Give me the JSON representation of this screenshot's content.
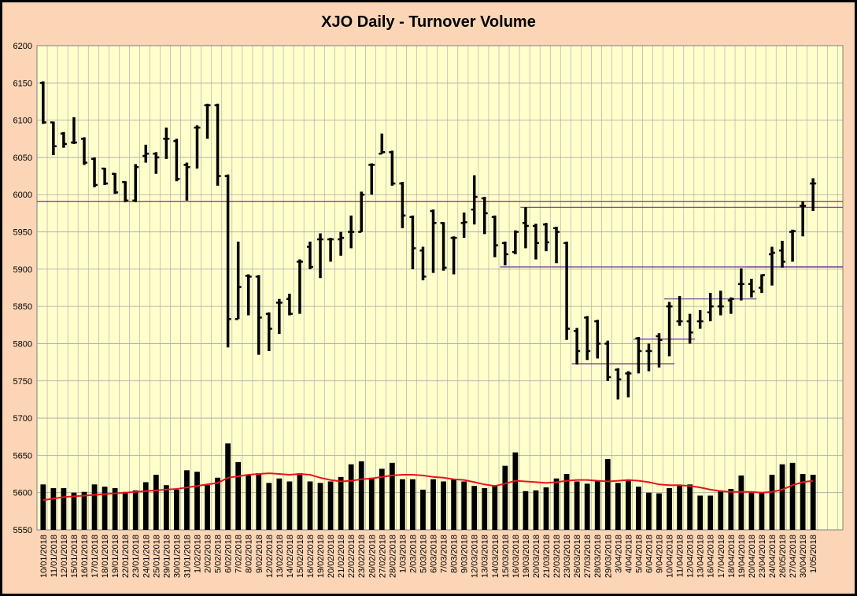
{
  "chart_data": {
    "type": "ohlc",
    "title": "XJO Daily - Turnover Volume",
    "ylim": [
      5550,
      6200
    ],
    "yticks": [
      5550,
      5600,
      5650,
      5700,
      5750,
      5800,
      5850,
      5900,
      5950,
      6000,
      6050,
      6100,
      6150,
      6200
    ],
    "grid": true,
    "categories": [
      "10/01/2018",
      "11/01/2018",
      "12/01/2018",
      "15/01/2018",
      "16/01/2018",
      "17/01/2018",
      "18/01/2018",
      "19/01/2018",
      "22/01/2018",
      "23/01/2018",
      "24/01/2018",
      "25/01/2018",
      "29/01/2018",
      "30/01/2018",
      "31/01/2018",
      "1/02/2018",
      "2/02/2018",
      "5/02/2018",
      "6/02/2018",
      "7/02/2018",
      "8/02/2018",
      "9/02/2018",
      "12/02/2018",
      "13/02/2018",
      "14/02/2018",
      "15/02/2018",
      "16/02/2018",
      "19/02/2018",
      "20/02/2018",
      "21/02/2018",
      "22/02/2018",
      "23/02/2018",
      "26/02/2018",
      "27/02/2018",
      "28/02/2018",
      "1/03/2018",
      "2/03/2018",
      "5/03/2018",
      "6/03/2018",
      "7/03/2018",
      "8/03/2018",
      "9/03/2018",
      "12/03/2018",
      "13/03/2018",
      "14/03/2018",
      "15/03/2018",
      "16/03/2018",
      "19/03/2018",
      "20/03/2018",
      "21/03/2018",
      "22/03/2018",
      "23/03/2018",
      "26/03/2018",
      "27/03/2018",
      "28/03/2018",
      "29/03/2018",
      "3/04/2018",
      "4/04/2018",
      "5/04/2018",
      "6/04/2018",
      "9/04/2018",
      "10/04/2018",
      "11/04/2018",
      "12/04/2018",
      "13/04/2018",
      "16/04/2018",
      "17/04/2018",
      "18/04/2018",
      "19/04/2018",
      "20/04/2018",
      "23/04/2018",
      "24/04/2018",
      "26/05/2018",
      "27/04/2018",
      "30/04/2018",
      "1/05/2018"
    ],
    "labeled_categories": [
      "10/01/2018",
      "11/01/2018",
      "12/01/2018",
      "15/01/2018",
      "16/01/2018",
      "17/01/2018",
      "18/01/2018",
      "19/01/2018",
      "22/01/2018",
      "23/01/2018",
      "24/01/2018",
      "25/01/2018",
      "29/01/2018",
      "30/01/2018",
      "31/01/2018",
      "1/02/2018",
      "2/02/2018",
      "5/02/2018",
      "6/02/2018",
      "7/02/2018",
      "8/02/2018",
      "9/02/2018",
      "12/02/2018",
      "13/02/2018",
      "14/02/2018",
      "15/02/2018",
      "16/02/2018",
      "19/02/2018",
      "20/02/2018",
      "21/02/2018",
      "22/02/2018",
      "23/02/2018",
      "26/02/2018",
      "27/02/2018",
      "28/02/2018",
      "1/03/2018",
      "2/03/2018",
      "5/03/2018",
      "6/03/2018",
      "7/03/2018",
      "8/03/2018",
      "9/03/2018",
      "12/03/2018",
      "13/03/2018",
      "14/03/2018",
      "15/03/2018",
      "16/03/2018",
      "19/03/2018",
      "20/03/2018",
      "21/03/2018",
      "22/03/2018",
      "23/03/2018",
      "26/03/2018",
      "27/03/2018",
      "28/03/2018",
      "29/03/2018",
      "3/04/2018",
      "4/04/2018",
      "5/04/2018",
      "6/04/2018",
      "9/04/2018",
      "10/04/2018",
      "11/04/2018",
      "12/04/2018",
      "13/04/2018",
      "16/04/2018",
      "17/04/2018",
      "18/04/2018",
      "19/04/2018",
      "20/04/2018",
      "23/04/2018",
      "24/04/2018",
      "26/05/2018",
      "27/04/2018",
      "30/04/2018",
      "1/05/2018"
    ],
    "ohlc": [
      [
        6150,
        6152,
        6095,
        6097
      ],
      [
        6097,
        6098,
        6053,
        6065
      ],
      [
        6082,
        6084,
        6063,
        6068
      ],
      [
        6070,
        6104,
        6068,
        6070
      ],
      [
        6075,
        6077,
        6040,
        6043
      ],
      [
        6048,
        6050,
        6010,
        6013
      ],
      [
        6035,
        6036,
        6013,
        6015
      ],
      [
        6028,
        6029,
        6001,
        6003
      ],
      [
        6017,
        6018,
        5990,
        5992
      ],
      [
        5992,
        6041,
        5990,
        6037
      ],
      [
        6052,
        6067,
        6043,
        6055
      ],
      [
        6055,
        6057,
        6028,
        6050
      ],
      [
        6075,
        6090,
        6048,
        6075
      ],
      [
        6072,
        6075,
        6018,
        6021
      ],
      [
        6040,
        6043,
        5992,
        6037
      ],
      [
        6090,
        6093,
        6035,
        6090
      ],
      [
        6120,
        6122,
        6075,
        6120
      ],
      [
        6120,
        6122,
        6012,
        6025
      ],
      [
        6025,
        6027,
        5795,
        5833
      ],
      [
        5833,
        5937,
        5833,
        5876
      ],
      [
        5891,
        5893,
        5838,
        5890
      ],
      [
        5890,
        5892,
        5785,
        5835
      ],
      [
        5840,
        5842,
        5790,
        5820
      ],
      [
        5855,
        5860,
        5813,
        5855
      ],
      [
        5860,
        5867,
        5838,
        5840
      ],
      [
        5910,
        5913,
        5840,
        5910
      ],
      [
        5930,
        5937,
        5900,
        5903
      ],
      [
        5940,
        5948,
        5888,
        5940
      ],
      [
        5940,
        5942,
        5910,
        5940
      ],
      [
        5940,
        5950,
        5918,
        5942
      ],
      [
        5950,
        5972,
        5928,
        5950
      ],
      [
        5950,
        6004,
        5950,
        6000
      ],
      [
        6040,
        6042,
        6000,
        6040
      ],
      [
        6055,
        6082,
        6055,
        6057
      ],
      [
        6057,
        6059,
        6012,
        6015
      ],
      [
        6015,
        6017,
        5955,
        5972
      ],
      [
        5970,
        5972,
        5900,
        5928
      ],
      [
        5925,
        5930,
        5885,
        5890
      ],
      [
        5978,
        5980,
        5895,
        5962
      ],
      [
        5962,
        5963,
        5898,
        5902
      ],
      [
        5942,
        5944,
        5893,
        5942
      ],
      [
        5962,
        5976,
        5942,
        5963
      ],
      [
        5980,
        6026,
        5960,
        5997
      ],
      [
        5995,
        5997,
        5947,
        5975
      ],
      [
        5970,
        5972,
        5916,
        5932
      ],
      [
        5935,
        5937,
        5905,
        5920
      ],
      [
        5923,
        5952,
        5920,
        5950
      ],
      [
        5962,
        5983,
        5928,
        5958
      ],
      [
        5958,
        5961,
        5913,
        5935
      ],
      [
        5960,
        5962,
        5924,
        5936
      ],
      [
        5955,
        5957,
        5908,
        5950
      ],
      [
        5935,
        5937,
        5805,
        5820
      ],
      [
        5817,
        5821,
        5772,
        5790
      ],
      [
        5835,
        5837,
        5778,
        5790
      ],
      [
        5830,
        5832,
        5780,
        5800
      ],
      [
        5800,
        5804,
        5750,
        5755
      ],
      [
        5765,
        5767,
        5725,
        5752
      ],
      [
        5760,
        5763,
        5728,
        5760
      ],
      [
        5807,
        5809,
        5760,
        5790
      ],
      [
        5790,
        5800,
        5763,
        5790
      ],
      [
        5810,
        5814,
        5768,
        5805
      ],
      [
        5850,
        5856,
        5783,
        5850
      ],
      [
        5830,
        5864,
        5824,
        5830
      ],
      [
        5830,
        5840,
        5800,
        5815
      ],
      [
        5830,
        5845,
        5820,
        5830
      ],
      [
        5842,
        5868,
        5830,
        5850
      ],
      [
        5850,
        5871,
        5838,
        5850
      ],
      [
        5858,
        5862,
        5840,
        5860
      ],
      [
        5880,
        5901,
        5858,
        5880
      ],
      [
        5880,
        5887,
        5862,
        5870
      ],
      [
        5875,
        5893,
        5868,
        5892
      ],
      [
        5920,
        5930,
        5878,
        5922
      ],
      [
        5925,
        5938,
        5902,
        5910
      ],
      [
        5950,
        5953,
        5910,
        5951
      ],
      [
        5985,
        5991,
        5944,
        5985
      ],
      [
        6015,
        6022,
        5978,
        6015
      ]
    ],
    "volume": [
      5611,
      5606,
      5606,
      5600,
      5601,
      5611,
      5608,
      5606,
      5601,
      5603,
      5614,
      5624,
      5610,
      5604,
      5630,
      5628,
      5610,
      5620,
      5666,
      5641,
      5623,
      5626,
      5613,
      5619,
      5615,
      5626,
      5615,
      5613,
      5615,
      5621,
      5638,
      5642,
      5620,
      5632,
      5640,
      5618,
      5618,
      5604,
      5618,
      5615,
      5618,
      5615,
      5609,
      5606,
      5610,
      5636,
      5654,
      5602,
      5603,
      5607,
      5619,
      5625,
      5615,
      5612,
      5615,
      5645,
      5613,
      5616,
      5608,
      5600,
      5599,
      5606,
      5609,
      5611,
      5596,
      5596,
      5603,
      5605,
      5623,
      5600,
      5600,
      5624,
      5638,
      5640,
      5625,
      5624
    ],
    "volume_ma": [
      5590,
      5592,
      5594,
      5595,
      5596,
      5597,
      5598,
      5599,
      5600,
      5601,
      5602,
      5603,
      5604,
      5605,
      5607,
      5609,
      5611,
      5613,
      5620,
      5622,
      5624,
      5625,
      5626,
      5625,
      5624,
      5625,
      5624,
      5620,
      5617,
      5615,
      5616,
      5618,
      5619,
      5621,
      5623,
      5624,
      5624,
      5623,
      5621,
      5620,
      5618,
      5617,
      5614,
      5611,
      5609,
      5612,
      5616,
      5615,
      5614,
      5613,
      5614,
      5616,
      5617,
      5617,
      5616,
      5615,
      5616,
      5617,
      5616,
      5614,
      5611,
      5610,
      5610,
      5609,
      5607,
      5604,
      5602,
      5601,
      5601,
      5601,
      5600,
      5601,
      5604,
      5610,
      5614,
      5616
    ],
    "annotations": [
      {
        "type": "hline",
        "y": 5991,
        "x_from": "10/01/2018",
        "x_to": "1/05/2018"
      },
      {
        "type": "hline",
        "y": 5983,
        "x_from": "19/03/2018",
        "x_to": "1/05/2018"
      },
      {
        "type": "hline",
        "y": 5903,
        "x_from": "15/03/2018",
        "x_to": "1/05/2018"
      },
      {
        "type": "hline",
        "y": 5903,
        "x_from": "20/04/2018",
        "x_to": "1/05/2018"
      },
      {
        "type": "hline",
        "y": 5860,
        "x_from": "10/04/2018",
        "x_to": "20/04/2018"
      },
      {
        "type": "hline",
        "y": 5806,
        "x_from": "5/04/2018",
        "x_to": "12/04/2018"
      },
      {
        "type": "hline",
        "y": 5773,
        "x_from": "26/03/2018",
        "x_to": "10/04/2018"
      }
    ]
  },
  "colors": {
    "background": "#fbd5b5",
    "plot_area": "#ffffcc",
    "grid": "#a6a6a6",
    "bars": "#000000",
    "moving_average": "#e8141d",
    "trend_lines": "#7030a0"
  }
}
